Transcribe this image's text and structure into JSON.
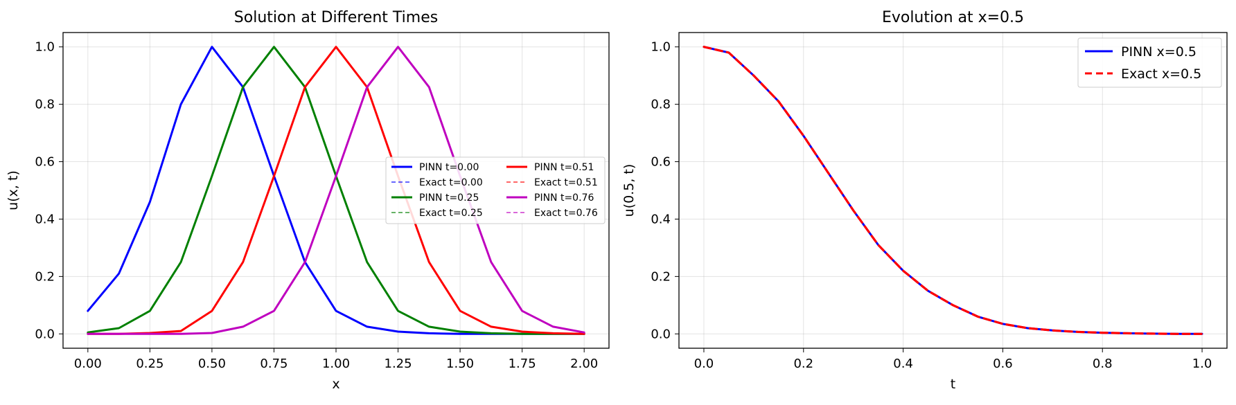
{
  "chart_data": [
    {
      "type": "line",
      "title": "Solution at Different Times",
      "xlabel": "x",
      "ylabel": "u(x, t)",
      "xlim": [
        -0.1,
        2.1
      ],
      "ylim": [
        -0.05,
        1.05
      ],
      "xticks": [
        "0.00",
        "0.25",
        "0.50",
        "0.75",
        "1.00",
        "1.25",
        "1.50",
        "1.75",
        "2.00"
      ],
      "yticks": [
        "0.0",
        "0.2",
        "0.4",
        "0.6",
        "0.8",
        "1.0"
      ],
      "grid": true,
      "legend_placement": "center-right",
      "legend_columns": 2,
      "series": [
        {
          "name": "PINN t=0.00",
          "style": "solid",
          "color": "#0000ff",
          "x": [
            0.0,
            0.125,
            0.25,
            0.375,
            0.5,
            0.625,
            0.75,
            0.875,
            1.0,
            1.125,
            1.25,
            1.375,
            1.5,
            1.625,
            1.75,
            1.875,
            2.0
          ],
          "y": [
            0.08,
            0.21,
            0.46,
            0.8,
            1.0,
            0.86,
            0.55,
            0.25,
            0.08,
            0.025,
            0.008,
            0.002,
            0.0,
            0.0,
            0.0,
            0.0,
            0.0
          ]
        },
        {
          "name": "Exact t=0.00",
          "style": "dashed",
          "color": "#0000ff",
          "x": [
            0.0,
            0.125,
            0.25,
            0.375,
            0.5,
            0.625,
            0.75,
            0.875,
            1.0,
            1.125,
            1.25,
            1.375,
            1.5,
            1.625,
            1.75,
            1.875,
            2.0
          ],
          "y": [
            0.08,
            0.21,
            0.46,
            0.8,
            1.0,
            0.86,
            0.55,
            0.25,
            0.08,
            0.025,
            0.008,
            0.002,
            0.0,
            0.0,
            0.0,
            0.0,
            0.0
          ]
        },
        {
          "name": "PINN t=0.25",
          "style": "solid",
          "color": "#008000",
          "x": [
            0.0,
            0.125,
            0.25,
            0.375,
            0.5,
            0.625,
            0.75,
            0.875,
            1.0,
            1.125,
            1.25,
            1.375,
            1.5,
            1.625,
            1.75,
            1.875,
            2.0
          ],
          "y": [
            0.005,
            0.02,
            0.08,
            0.25,
            0.55,
            0.86,
            1.0,
            0.86,
            0.55,
            0.25,
            0.08,
            0.025,
            0.008,
            0.002,
            0.0,
            0.0,
            0.0
          ]
        },
        {
          "name": "Exact t=0.25",
          "style": "dashed",
          "color": "#008000",
          "x": [
            0.0,
            0.125,
            0.25,
            0.375,
            0.5,
            0.625,
            0.75,
            0.875,
            1.0,
            1.125,
            1.25,
            1.375,
            1.5,
            1.625,
            1.75,
            1.875,
            2.0
          ],
          "y": [
            0.005,
            0.02,
            0.08,
            0.25,
            0.55,
            0.86,
            1.0,
            0.86,
            0.55,
            0.25,
            0.08,
            0.025,
            0.008,
            0.002,
            0.0,
            0.0,
            0.0
          ]
        },
        {
          "name": "PINN t=0.51",
          "style": "solid",
          "color": "#ff0000",
          "x": [
            0.0,
            0.125,
            0.25,
            0.375,
            0.5,
            0.625,
            0.75,
            0.875,
            1.0,
            1.125,
            1.25,
            1.375,
            1.5,
            1.625,
            1.75,
            1.875,
            2.0
          ],
          "y": [
            0.0,
            0.0,
            0.003,
            0.01,
            0.08,
            0.25,
            0.55,
            0.86,
            1.0,
            0.86,
            0.55,
            0.25,
            0.08,
            0.025,
            0.008,
            0.002,
            0.0
          ]
        },
        {
          "name": "Exact t=0.51",
          "style": "dashed",
          "color": "#ff0000",
          "x": [
            0.0,
            0.125,
            0.25,
            0.375,
            0.5,
            0.625,
            0.75,
            0.875,
            1.0,
            1.125,
            1.25,
            1.375,
            1.5,
            1.625,
            1.75,
            1.875,
            2.0
          ],
          "y": [
            0.0,
            0.0,
            0.003,
            0.01,
            0.08,
            0.25,
            0.55,
            0.86,
            1.0,
            0.86,
            0.55,
            0.25,
            0.08,
            0.025,
            0.008,
            0.002,
            0.0
          ]
        },
        {
          "name": "PINN t=0.76",
          "style": "solid",
          "color": "#bf00bf",
          "x": [
            0.0,
            0.125,
            0.25,
            0.375,
            0.5,
            0.625,
            0.75,
            0.875,
            1.0,
            1.125,
            1.25,
            1.375,
            1.5,
            1.625,
            1.75,
            1.875,
            2.0
          ],
          "y": [
            0.0,
            0.0,
            0.0,
            0.0,
            0.003,
            0.025,
            0.08,
            0.25,
            0.55,
            0.86,
            1.0,
            0.86,
            0.55,
            0.25,
            0.08,
            0.025,
            0.005
          ]
        },
        {
          "name": "Exact t=0.76",
          "style": "dashed",
          "color": "#bf00bf",
          "x": [
            0.0,
            0.125,
            0.25,
            0.375,
            0.5,
            0.625,
            0.75,
            0.875,
            1.0,
            1.125,
            1.25,
            1.375,
            1.5,
            1.625,
            1.75,
            1.875,
            2.0
          ],
          "y": [
            0.0,
            0.0,
            0.0,
            0.0,
            0.003,
            0.025,
            0.08,
            0.25,
            0.55,
            0.86,
            1.0,
            0.86,
            0.55,
            0.25,
            0.08,
            0.025,
            0.005
          ]
        }
      ]
    },
    {
      "type": "line",
      "title": "Evolution at x=0.5",
      "xlabel": "t",
      "ylabel": "u(0.5, t)",
      "xlim": [
        -0.05,
        1.05
      ],
      "ylim": [
        -0.05,
        1.05
      ],
      "xticks": [
        "0.0",
        "0.2",
        "0.4",
        "0.6",
        "0.8",
        "1.0"
      ],
      "yticks": [
        "0.0",
        "0.2",
        "0.4",
        "0.6",
        "0.8",
        "1.0"
      ],
      "grid": true,
      "legend_placement": "top-right",
      "series": [
        {
          "name": "PINN x=0.5",
          "style": "solid",
          "color": "#0000ff",
          "x": [
            0.0,
            0.05,
            0.1,
            0.15,
            0.2,
            0.25,
            0.3,
            0.35,
            0.4,
            0.45,
            0.5,
            0.55,
            0.6,
            0.65,
            0.7,
            0.75,
            0.8,
            0.85,
            0.9,
            0.95,
            1.0
          ],
          "y": [
            1.0,
            0.98,
            0.9,
            0.81,
            0.69,
            0.56,
            0.43,
            0.31,
            0.22,
            0.15,
            0.1,
            0.06,
            0.035,
            0.02,
            0.012,
            0.007,
            0.004,
            0.002,
            0.001,
            0.0,
            0.0
          ]
        },
        {
          "name": "Exact x=0.5",
          "style": "dashed",
          "color": "#ff0000",
          "x": [
            0.0,
            0.05,
            0.1,
            0.15,
            0.2,
            0.25,
            0.3,
            0.35,
            0.4,
            0.45,
            0.5,
            0.55,
            0.6,
            0.65,
            0.7,
            0.75,
            0.8,
            0.85,
            0.9,
            0.95,
            1.0
          ],
          "y": [
            1.0,
            0.98,
            0.9,
            0.81,
            0.69,
            0.56,
            0.43,
            0.31,
            0.22,
            0.15,
            0.1,
            0.06,
            0.035,
            0.02,
            0.012,
            0.007,
            0.004,
            0.002,
            0.001,
            0.0,
            0.0
          ]
        }
      ]
    }
  ]
}
